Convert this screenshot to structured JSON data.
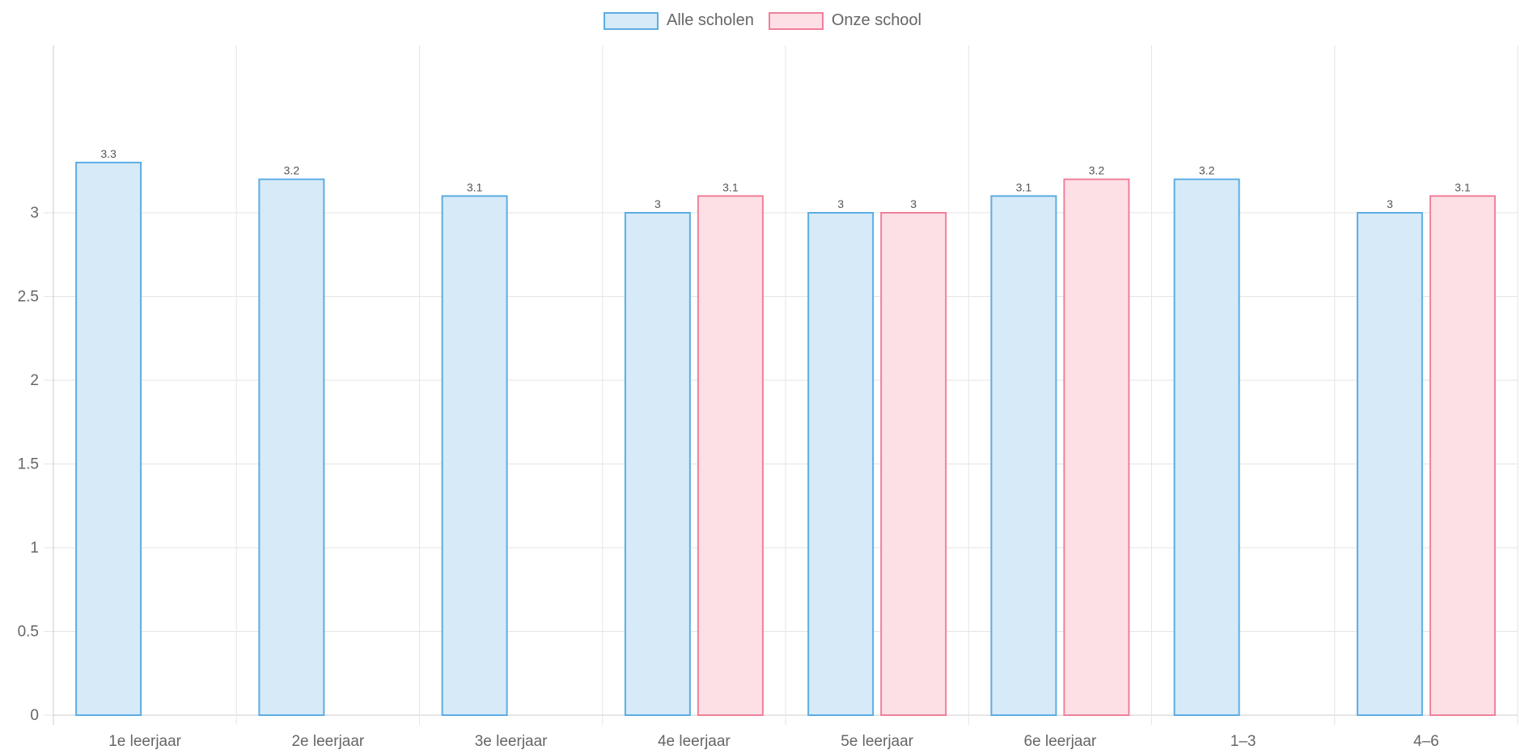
{
  "chart_data": {
    "type": "bar",
    "categories": [
      "1e leerjaar",
      "2e leerjaar",
      "3e leerjaar",
      "4e leerjaar",
      "5e leerjaar",
      "6e leerjaar",
      "1–3",
      "4–6"
    ],
    "series": [
      {
        "name": "Alle scholen",
        "values": [
          3.3,
          3.2,
          3.1,
          3,
          3,
          3.1,
          3.2,
          3
        ],
        "labels": [
          "3.3",
          "3.2",
          "3.1",
          "3",
          "3",
          "3.1",
          "3.2",
          "3"
        ],
        "fill": "#d6eaf8",
        "stroke": "#5dade2"
      },
      {
        "name": "Onze school",
        "values": [
          null,
          null,
          null,
          3.1,
          3,
          3.2,
          null,
          3.1
        ],
        "labels": [
          null,
          null,
          null,
          "3.1",
          "3",
          "3.2",
          null,
          "3.1"
        ],
        "fill": "#fde0e6",
        "stroke": "#f0809a"
      }
    ],
    "yticks": [
      {
        "value": 0,
        "label": "0"
      },
      {
        "value": 0.5,
        "label": "0.5"
      },
      {
        "value": 1,
        "label": "1"
      },
      {
        "value": 1.5,
        "label": "1.5"
      },
      {
        "value": 2,
        "label": "2"
      },
      {
        "value": 2.5,
        "label": "2.5"
      },
      {
        "value": 3,
        "label": "3"
      }
    ],
    "ylim": [
      0,
      4
    ],
    "grid": true,
    "legend_position": "top-center",
    "colors": {
      "grid": "#e5e5e5",
      "axis": "#cccccc",
      "tick_text": "#666666",
      "value_label": "#555555"
    }
  }
}
